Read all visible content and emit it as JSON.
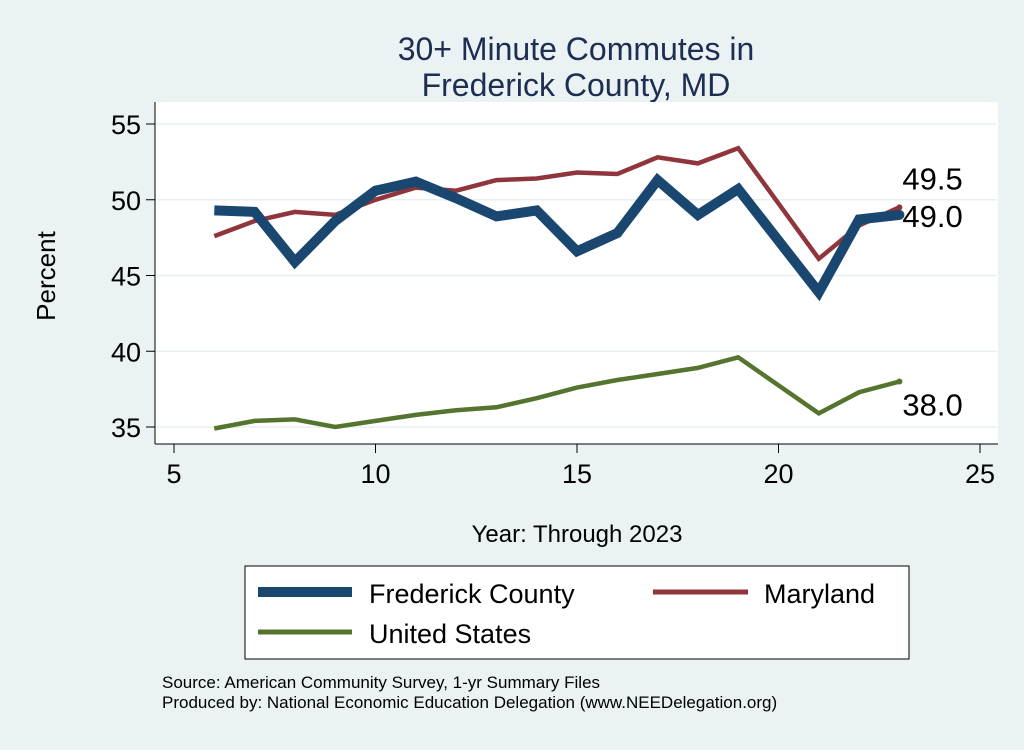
{
  "chart_data": {
    "type": "line",
    "title_lines": [
      "30+ Minute Commutes in",
      "Frederick County, MD"
    ],
    "xlabel": "Year: Through 2023",
    "ylabel": "Percent",
    "xlim": [
      5,
      25
    ],
    "ylim": [
      33.8,
      56.3
    ],
    "x_ticks": [
      5,
      10,
      15,
      20,
      25
    ],
    "y_ticks": [
      35,
      40,
      45,
      50,
      55
    ],
    "grid": "horizontal",
    "legend_position": "bottom",
    "series": [
      {
        "name": "Frederick County",
        "color": "#1a476f",
        "x": [
          6,
          7,
          8,
          9,
          10,
          11,
          12,
          13,
          14,
          15,
          16,
          17,
          18,
          19,
          21,
          22,
          23
        ],
        "values": [
          49.3,
          49.2,
          45.9,
          48.6,
          50.6,
          51.2,
          50.1,
          48.9,
          49.3,
          46.6,
          47.8,
          51.3,
          49.0,
          50.7,
          43.9,
          48.7,
          49.0
        ],
        "end_label": "49.0"
      },
      {
        "name": "Maryland",
        "color": "#90353b",
        "x": [
          6,
          7,
          8,
          9,
          10,
          11,
          12,
          13,
          14,
          15,
          16,
          17,
          18,
          19,
          21,
          22,
          23
        ],
        "values": [
          47.6,
          48.6,
          49.2,
          49.0,
          50.0,
          50.8,
          50.6,
          51.3,
          51.4,
          51.8,
          51.7,
          52.8,
          52.4,
          53.4,
          46.1,
          48.3,
          49.5
        ],
        "end_label": "49.5"
      },
      {
        "name": "United States",
        "color": "#55752f",
        "x": [
          6,
          7,
          8,
          9,
          10,
          11,
          12,
          13,
          14,
          15,
          16,
          17,
          18,
          19,
          21,
          22,
          23
        ],
        "values": [
          34.9,
          35.4,
          35.5,
          35.0,
          35.4,
          35.8,
          36.1,
          36.3,
          36.9,
          37.6,
          38.1,
          38.5,
          38.9,
          39.6,
          35.9,
          37.3,
          38.0
        ],
        "end_label": "38.0"
      }
    ],
    "source_lines": [
      "Source: American Community Survey, 1-yr Summary Files",
      "Produced by: National Economic Education Delegation (www.NEEDelegation.org)"
    ]
  }
}
